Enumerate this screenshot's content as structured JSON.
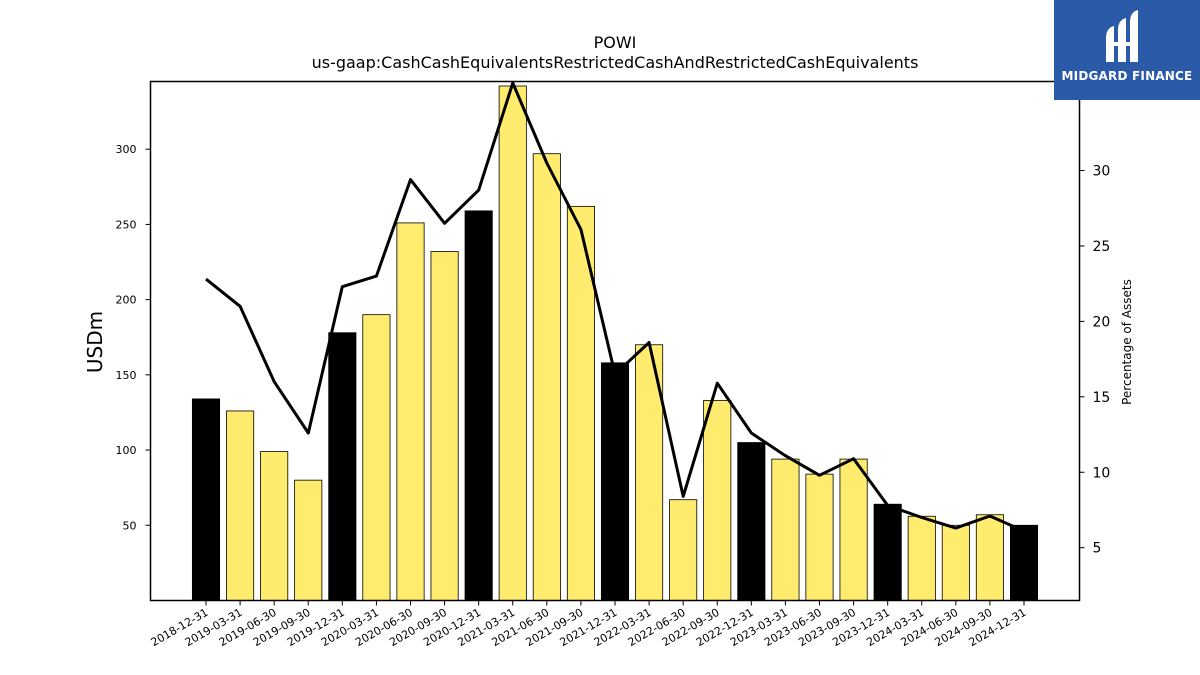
{
  "chart_data": {
    "type": "bar+line",
    "title": "POWI",
    "subtitle": "us-gaap:CashCashEquivalentsRestrictedCashAndRestrictedCashEquivalents",
    "ylabel": "USDm",
    "y2label": "Percentage of Assets",
    "ylim": [
      0,
      345
    ],
    "y2lim": [
      1.5,
      35.9
    ],
    "yticks": [
      50,
      100,
      150,
      200,
      250,
      300
    ],
    "y2ticks": [
      5,
      10,
      15,
      20,
      25,
      30
    ],
    "categories": [
      "2018-12-31",
      "2019-03-31",
      "2019-06-30",
      "2019-09-30",
      "2019-12-31",
      "2020-03-31",
      "2020-06-30",
      "2020-09-30",
      "2020-12-31",
      "2021-03-31",
      "2021-06-30",
      "2021-09-30",
      "2021-12-31",
      "2022-03-31",
      "2022-06-30",
      "2022-09-30",
      "2022-12-31",
      "2023-03-31",
      "2023-06-30",
      "2023-09-30",
      "2023-12-31",
      "2024-03-31",
      "2024-06-30",
      "2024-09-30",
      "2024-12-31"
    ],
    "values": [
      134,
      126,
      99,
      80,
      178,
      190,
      251,
      232,
      259,
      342,
      297,
      262,
      158,
      170,
      67,
      133,
      105,
      94,
      84,
      94,
      64,
      56,
      50,
      57,
      50
    ],
    "year_end": [
      true,
      false,
      false,
      false,
      true,
      false,
      false,
      false,
      true,
      false,
      false,
      false,
      true,
      false,
      false,
      false,
      true,
      false,
      false,
      false,
      true,
      false,
      false,
      false,
      true
    ],
    "line_values": [
      22.8,
      21.0,
      16.0,
      12.6,
      22.3,
      23.0,
      29.4,
      26.5,
      28.7,
      35.8,
      30.5,
      26.1,
      16.5,
      18.6,
      8.4,
      15.9,
      12.6,
      11.1,
      9.8,
      10.9,
      7.8,
      7.0,
      6.3,
      7.1,
      6.1
    ],
    "colors": {
      "bar": "#ffec6e",
      "bar_year_end": "#000000",
      "line": "#000000"
    }
  },
  "logo": {
    "text": "MIDGARD FINANCE",
    "background": "#2b5aa8"
  }
}
